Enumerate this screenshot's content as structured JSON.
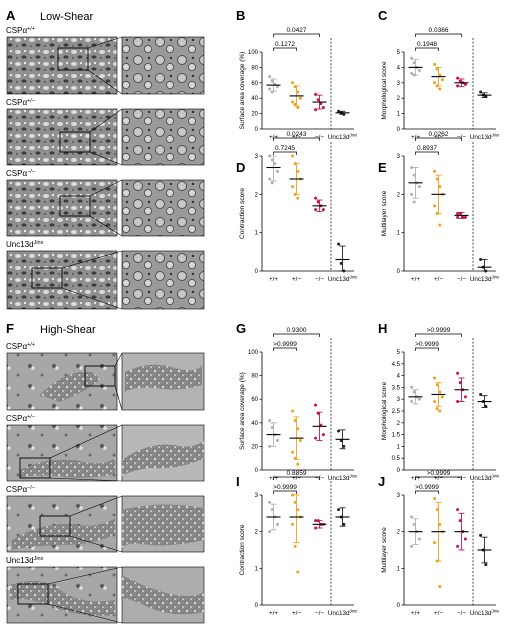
{
  "figure": {
    "sections": [
      {
        "letter": "A",
        "title": "Low-Shear"
      },
      {
        "letter": "F",
        "title": "High-Shear"
      }
    ],
    "genotype_labels": [
      {
        "base": "CSPα",
        "sup": "+/+"
      },
      {
        "base": "CSPα",
        "sup": "+/−"
      },
      {
        "base": "CSPα",
        "sup": "−/−"
      },
      {
        "base": "Unc13d",
        "sup": "Jinx"
      }
    ],
    "x_labels": [
      "+/+",
      "+/−",
      "−/−",
      "Unc13d"
    ],
    "x_label_sup": "Jinx",
    "colors": {
      "wt": "#b0b0b0",
      "het": "#f0a21e",
      "ko": "#c8144a",
      "unc": "#222222",
      "mean": "#000000"
    }
  },
  "chart_data": [
    {
      "panel": "B",
      "type": "scatter",
      "ylabel": "Surface area coverage (%)",
      "ylim": [
        0,
        100
      ],
      "yticks": [
        0,
        20,
        40,
        60,
        80,
        100
      ],
      "groups": [
        {
          "label": "+/+",
          "mean": 57,
          "sd": 8,
          "points": [
            68,
            62,
            58,
            55,
            52,
            48
          ]
        },
        {
          "label": "+/−",
          "mean": 43,
          "sd": 13,
          "points": [
            60,
            55,
            48,
            40,
            35,
            32,
            28
          ]
        },
        {
          "label": "−/−",
          "mean": 35,
          "sd": 9,
          "points": [
            45,
            38,
            33,
            28,
            25
          ]
        },
        {
          "label": "Unc13d",
          "mean": 21,
          "sd": 2,
          "points": [
            23,
            21,
            19
          ]
        }
      ],
      "brackets": [
        {
          "from": 0,
          "to": 2,
          "p": "0.0427"
        },
        {
          "from": 0,
          "to": 1,
          "p": "0.1272"
        }
      ]
    },
    {
      "panel": "C",
      "type": "scatter",
      "ylabel": "Morphological score",
      "ylim": [
        0,
        5
      ],
      "yticks": [
        0,
        1,
        2,
        3,
        4,
        5
      ],
      "groups": [
        {
          "label": "+/+",
          "mean": 4.0,
          "sd": 0.5,
          "points": [
            4.6,
            4.3,
            4.0,
            3.8,
            3.6,
            3.5
          ]
        },
        {
          "label": "+/−",
          "mean": 3.4,
          "sd": 0.6,
          "points": [
            4.2,
            3.9,
            3.5,
            3.2,
            3.0,
            2.8,
            2.6
          ]
        },
        {
          "label": "−/−",
          "mean": 3.0,
          "sd": 0.25,
          "points": [
            3.3,
            3.1,
            3.0,
            2.9,
            2.8
          ]
        },
        {
          "label": "Unc13d",
          "mean": 2.2,
          "sd": 0.15,
          "points": [
            2.4,
            2.2,
            2.1
          ]
        }
      ],
      "brackets": [
        {
          "from": 0,
          "to": 2,
          "p": "0.0366"
        },
        {
          "from": 0,
          "to": 1,
          "p": "0.1948"
        }
      ]
    },
    {
      "panel": "D",
      "type": "scatter",
      "ylabel": "Contraction score",
      "ylim": [
        0,
        3
      ],
      "yticks": [
        0,
        1,
        2,
        3
      ],
      "groups": [
        {
          "label": "+/+",
          "mean": 2.7,
          "sd": 0.35,
          "points": [
            3.0,
            2.9,
            2.8,
            2.6,
            2.4,
            2.3
          ]
        },
        {
          "label": "+/−",
          "mean": 2.4,
          "sd": 0.4,
          "points": [
            3.0,
            2.8,
            2.6,
            2.4,
            2.2,
            2.0,
            1.9
          ]
        },
        {
          "label": "−/−",
          "mean": 1.7,
          "sd": 0.15,
          "points": [
            1.9,
            1.8,
            1.7,
            1.6,
            1.6
          ]
        },
        {
          "label": "Unc13d",
          "mean": 0.3,
          "sd": 0.35,
          "points": [
            0.7,
            0.2,
            0.0
          ]
        }
      ],
      "brackets": [
        {
          "from": 0,
          "to": 2,
          "p": "0.0243"
        },
        {
          "from": 0,
          "to": 1,
          "p": "0.7245"
        }
      ]
    },
    {
      "panel": "E",
      "type": "scatter",
      "ylabel": "Multilayer score",
      "ylim": [
        0,
        3
      ],
      "yticks": [
        0,
        1,
        2,
        3
      ],
      "groups": [
        {
          "label": "+/+",
          "mean": 2.3,
          "sd": 0.4,
          "points": [
            2.7,
            2.5,
            2.3,
            2.2,
            2.0,
            1.8
          ]
        },
        {
          "label": "+/−",
          "mean": 2.0,
          "sd": 0.5,
          "points": [
            2.6,
            2.4,
            2.2,
            2.0,
            1.7,
            1.5,
            1.2
          ]
        },
        {
          "label": "−/−",
          "mean": 1.45,
          "sd": 0.08,
          "points": [
            1.5,
            1.5,
            1.4,
            1.4,
            1.4
          ]
        },
        {
          "label": "Unc13d",
          "mean": 0.1,
          "sd": 0.2,
          "points": [
            0.3,
            0.1,
            0.0
          ]
        }
      ],
      "brackets": [
        {
          "from": 0,
          "to": 2,
          "p": "0.0262"
        },
        {
          "from": 0,
          "to": 1,
          "p": "0.8937"
        }
      ]
    },
    {
      "panel": "G",
      "type": "scatter",
      "ylabel": "Surface area coverage (%)",
      "ylim": [
        0,
        100
      ],
      "yticks": [
        0,
        20,
        40,
        60,
        80,
        100
      ],
      "groups": [
        {
          "label": "+/+",
          "mean": 30,
          "sd": 10,
          "points": [
            42,
            36,
            30,
            25,
            20
          ]
        },
        {
          "label": "+/−",
          "mean": 27,
          "sd": 18,
          "points": [
            50,
            42,
            35,
            25,
            15,
            10,
            5
          ]
        },
        {
          "label": "−/−",
          "mean": 37,
          "sd": 12,
          "points": [
            55,
            48,
            38,
            30,
            27
          ]
        },
        {
          "label": "Unc13d",
          "mean": 26,
          "sd": 8,
          "points": [
            33,
            25,
            20
          ]
        }
      ],
      "brackets": [
        {
          "from": 0,
          "to": 2,
          "p": "0.9300"
        },
        {
          "from": 0,
          "to": 1,
          "p": ">0.9999"
        }
      ]
    },
    {
      "panel": "H",
      "type": "scatter",
      "ylabel": "Morphological score",
      "ylim": [
        0,
        5
      ],
      "yticks": [
        0,
        0.5,
        1,
        1.5,
        2,
        2.5,
        3,
        3.5,
        4,
        4.5,
        5
      ],
      "groups": [
        {
          "label": "+/+",
          "mean": 3.1,
          "sd": 0.3,
          "points": [
            3.5,
            3.3,
            3.1,
            3.0,
            2.9
          ]
        },
        {
          "label": "+/−",
          "mean": 3.2,
          "sd": 0.5,
          "points": [
            3.9,
            3.6,
            3.3,
            3.1,
            2.9,
            2.6,
            2.5
          ]
        },
        {
          "label": "−/−",
          "mean": 3.4,
          "sd": 0.5,
          "points": [
            4.1,
            3.7,
            3.4,
            3.1,
            2.9
          ]
        },
        {
          "label": "Unc13d",
          "mean": 2.9,
          "sd": 0.25,
          "points": [
            3.2,
            2.9,
            2.7
          ]
        }
      ],
      "brackets": [
        {
          "from": 0,
          "to": 2,
          "p": ">0.9999"
        },
        {
          "from": 0,
          "to": 1,
          "p": ">0.9999"
        }
      ]
    },
    {
      "panel": "I",
      "type": "scatter",
      "ylabel": "Contraction score",
      "ylim": [
        0,
        3
      ],
      "yticks": [
        0,
        1,
        2,
        3
      ],
      "groups": [
        {
          "label": "+/+",
          "mean": 2.4,
          "sd": 0.35,
          "points": [
            2.8,
            2.6,
            2.4,
            2.2,
            2.0
          ]
        },
        {
          "label": "+/−",
          "mean": 2.4,
          "sd": 0.7,
          "points": [
            3.0,
            2.8,
            2.6,
            2.4,
            2.2,
            1.6,
            0.9
          ]
        },
        {
          "label": "−/−",
          "mean": 2.2,
          "sd": 0.1,
          "points": [
            2.3,
            2.3,
            2.2,
            2.2,
            2.1
          ]
        },
        {
          "label": "Unc13d",
          "mean": 2.4,
          "sd": 0.25,
          "points": [
            2.6,
            2.4,
            2.2
          ]
        }
      ],
      "brackets": [
        {
          "from": 0,
          "to": 2,
          "p": "0.8859"
        },
        {
          "from": 0,
          "to": 1,
          "p": ">0.9999"
        }
      ]
    },
    {
      "panel": "J",
      "type": "scatter",
      "ylabel": "Multilayer score",
      "ylim": [
        0,
        3
      ],
      "yticks": [
        0,
        1,
        2,
        3
      ],
      "groups": [
        {
          "label": "+/+",
          "mean": 2.0,
          "sd": 0.35,
          "points": [
            2.4,
            2.2,
            2.0,
            1.8,
            1.6
          ]
        },
        {
          "label": "+/−",
          "mean": 2.0,
          "sd": 0.8,
          "points": [
            2.9,
            2.6,
            2.2,
            2.0,
            1.7,
            1.2,
            0.5
          ]
        },
        {
          "label": "−/−",
          "mean": 2.0,
          "sd": 0.5,
          "points": [
            2.6,
            2.3,
            2.0,
            1.8,
            1.6
          ]
        },
        {
          "label": "Unc13d",
          "mean": 1.5,
          "sd": 0.35,
          "points": [
            1.9,
            1.5,
            1.1
          ]
        }
      ],
      "brackets": [
        {
          "from": 0,
          "to": 2,
          "p": ">0.9999"
        },
        {
          "from": 0,
          "to": 1,
          "p": ">0.9999"
        }
      ]
    }
  ]
}
